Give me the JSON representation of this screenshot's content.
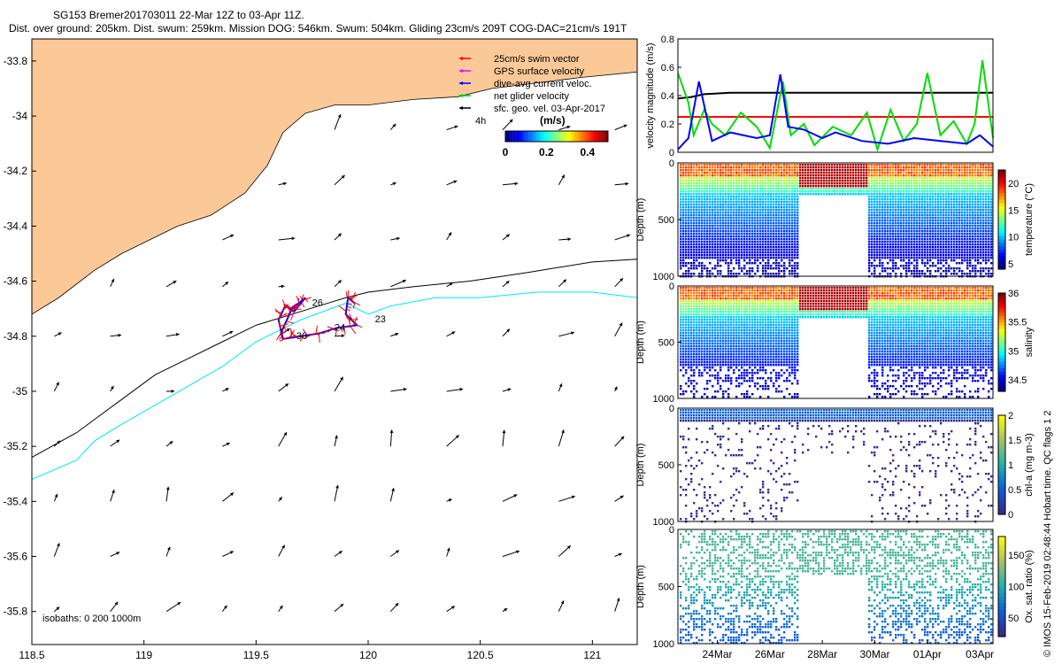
{
  "header": {
    "title": "SG153 Bremer201703011 22-Mar 12Z to 03-Apr 11Z.",
    "subtitle": "Dist. over ground: 205km. Dist. swum: 259km. Mission DOG: 546km. Swum: 504km. Gliding 23cm/s 209T COG-DAC=21cm/s 191T"
  },
  "credit": "© IMOS 15-Feb-2019 02:48:44 Hobart time. QC flags 1 2",
  "colors": {
    "land": "#fbc997",
    "isobath_200": "#000000",
    "isobath_1000": "#00e5ff",
    "swim_vector": "#ff0000",
    "gps_velocity": "#ff00ff",
    "dive_avg_current": "#0000ff",
    "net_glider": "#00cc00",
    "sfc_geo_vel": "#000000"
  },
  "chart_data": [
    {
      "type": "map",
      "name": "glider-track-map",
      "xlim": [
        118.5,
        121.2
      ],
      "ylim": [
        -35.92,
        -33.72
      ],
      "xticks": [
        118.5,
        119,
        119.5,
        120,
        120.5,
        121
      ],
      "yticks": [
        -33.8,
        -34,
        -34.2,
        -34.4,
        -34.6,
        -34.8,
        -35,
        -35.2,
        -35.4,
        -35.6,
        -35.8
      ],
      "legend": {
        "position": "top-right",
        "entries": [
          "25cm/s swim vector",
          "GPS surface velocity",
          "dive-avg current veloc.",
          "net glider velocity",
          "sfc. geo. vel. 03-Apr-2017"
        ]
      },
      "colorbar": {
        "label": "(m/s)",
        "range": [
          0,
          0.5
        ],
        "ticks": [
          0,
          0.2,
          0.4
        ]
      },
      "time_label": "4h",
      "isobath_note": "isobaths: 0   200   1000m",
      "track_labels": [
        {
          "text": "23",
          "lon": 120.03,
          "lat": -34.75
        },
        {
          "text": "26",
          "lon": 119.75,
          "lat": -34.69
        },
        {
          "text": "24",
          "lon": 119.85,
          "lat": -34.78
        },
        {
          "text": "30",
          "lon": 119.68,
          "lat": -34.81
        }
      ],
      "track": [
        [
          119.94,
          -34.68
        ],
        [
          119.91,
          -34.66
        ],
        [
          119.9,
          -34.72
        ],
        [
          119.95,
          -34.76
        ],
        [
          119.86,
          -34.77
        ],
        [
          119.78,
          -34.79
        ],
        [
          119.7,
          -34.8
        ],
        [
          119.62,
          -34.81
        ],
        [
          119.6,
          -34.74
        ],
        [
          119.63,
          -34.69
        ],
        [
          119.67,
          -34.71
        ],
        [
          119.72,
          -34.66
        ],
        [
          119.66,
          -34.7
        ],
        [
          119.61,
          -34.79
        ]
      ],
      "currents_grid": {
        "lon": [
          118.6,
          118.85,
          119.1,
          119.35,
          119.6,
          119.85,
          120.1,
          120.35,
          120.6,
          120.85,
          121.1
        ],
        "lat": [
          -34.05,
          -34.25,
          -34.45,
          -34.62,
          -34.8,
          -35.0,
          -35.2,
          -35.4,
          -35.6,
          -35.8
        ]
      },
      "isobath_200": [
        [
          118.5,
          -35.24
        ],
        [
          118.7,
          -35.15
        ],
        [
          118.9,
          -35.03
        ],
        [
          119.05,
          -34.94
        ],
        [
          119.2,
          -34.88
        ],
        [
          119.35,
          -34.82
        ],
        [
          119.5,
          -34.76
        ],
        [
          119.7,
          -34.71
        ],
        [
          119.9,
          -34.66
        ],
        [
          120.0,
          -34.64
        ],
        [
          120.2,
          -34.62
        ],
        [
          120.45,
          -34.6
        ],
        [
          120.7,
          -34.57
        ],
        [
          121.0,
          -34.53
        ],
        [
          121.2,
          -34.52
        ]
      ],
      "isobath_1000": [
        [
          118.5,
          -35.32
        ],
        [
          118.7,
          -35.25
        ],
        [
          118.78,
          -35.18
        ],
        [
          118.9,
          -35.12
        ],
        [
          119.05,
          -35.05
        ],
        [
          119.2,
          -34.98
        ],
        [
          119.35,
          -34.91
        ],
        [
          119.5,
          -34.82
        ],
        [
          119.7,
          -34.74
        ],
        [
          119.9,
          -34.68
        ],
        [
          120.0,
          -34.72
        ],
        [
          120.1,
          -34.69
        ],
        [
          120.3,
          -34.66
        ],
        [
          120.5,
          -34.66
        ],
        [
          120.75,
          -34.64
        ],
        [
          121.0,
          -34.64
        ],
        [
          121.2,
          -34.66
        ]
      ],
      "coastline": [
        [
          118.5,
          -34.72
        ],
        [
          118.62,
          -34.66
        ],
        [
          118.78,
          -34.56
        ],
        [
          118.9,
          -34.5
        ],
        [
          119.05,
          -34.44
        ],
        [
          119.15,
          -34.4
        ],
        [
          119.3,
          -34.36
        ],
        [
          119.45,
          -34.28
        ],
        [
          119.55,
          -34.18
        ],
        [
          119.62,
          -34.06
        ],
        [
          119.72,
          -33.99
        ],
        [
          119.85,
          -33.96
        ],
        [
          120.0,
          -33.96
        ],
        [
          120.2,
          -33.94
        ],
        [
          120.4,
          -33.93
        ],
        [
          120.55,
          -33.9
        ],
        [
          120.75,
          -33.88
        ],
        [
          120.95,
          -33.86
        ],
        [
          121.2,
          -33.84
        ]
      ]
    },
    {
      "type": "line",
      "name": "velocity-magnitude",
      "ylabel": "velocity magnitude (m/s)",
      "xlim": [
        0,
        12
      ],
      "ylim": [
        0,
        0.8
      ],
      "yticks": [
        0,
        0.2,
        0.4,
        0.6,
        0.8
      ],
      "series": [
        {
          "color": "#000000",
          "x": [
            0,
            0.5,
            1,
            2,
            4,
            6,
            8,
            10,
            12
          ],
          "values": [
            0.38,
            0.39,
            0.41,
            0.42,
            0.42,
            0.42,
            0.42,
            0.42,
            0.42
          ]
        },
        {
          "color": "#ff0000",
          "x": [
            0,
            12
          ],
          "values": [
            0.25,
            0.25
          ]
        },
        {
          "color": "#00dd00",
          "x": [
            0,
            0.4,
            0.6,
            1.0,
            1.3,
            1.8,
            2.4,
            3.0,
            3.5,
            4.0,
            4.3,
            4.8,
            5.2,
            5.9,
            6.6,
            7.2,
            7.6,
            8.1,
            8.6,
            9.1,
            9.5,
            10.0,
            10.5,
            11.0,
            11.3,
            11.6,
            12.0
          ],
          "values": [
            0.56,
            0.35,
            0.12,
            0.3,
            0.2,
            0.12,
            0.28,
            0.18,
            0.03,
            0.5,
            0.12,
            0.2,
            0.05,
            0.18,
            0.12,
            0.28,
            0.02,
            0.3,
            0.08,
            0.2,
            0.56,
            0.12,
            0.22,
            0.06,
            0.2,
            0.65,
            0.1
          ]
        },
        {
          "color": "#0000ff",
          "x": [
            0,
            0.4,
            0.8,
            1.3,
            2.0,
            3.0,
            3.5,
            3.9,
            4.2,
            4.8,
            5.5,
            6.0,
            7.0,
            8.0,
            9.0,
            10.0,
            11.0,
            11.5,
            12.0
          ],
          "values": [
            0.02,
            0.1,
            0.5,
            0.08,
            0.14,
            0.1,
            0.12,
            0.55,
            0.18,
            0.16,
            0.1,
            0.14,
            0.08,
            0.06,
            0.1,
            0.08,
            0.06,
            0.12,
            0.04
          ]
        }
      ]
    },
    {
      "type": "heatmap",
      "name": "temperature-section",
      "ylabel": "Depth (m)",
      "colorbar_label": "temperature (°C)",
      "ylim": [
        1000,
        0
      ],
      "yticks": [
        0,
        500,
        1000
      ],
      "colorbar_range": [
        4,
        22.5
      ],
      "colorbar_ticks": [
        5,
        10,
        15,
        20
      ]
    },
    {
      "type": "heatmap",
      "name": "salinity-section",
      "ylabel": "Depth (m)",
      "colorbar_label": "salinity",
      "ylim": [
        1000,
        0
      ],
      "yticks": [
        0,
        500,
        1000
      ],
      "colorbar_range": [
        34.3,
        36
      ],
      "colorbar_ticks": [
        34.5,
        35,
        35.5,
        36
      ]
    },
    {
      "type": "scatter",
      "name": "chlorophyll-section",
      "ylabel": "Depth (m)",
      "colorbar_label": "chl-a (mg m-3)",
      "ylim": [
        1000,
        0
      ],
      "yticks": [
        0,
        500,
        1000
      ],
      "colorbar_range": [
        0,
        2
      ],
      "colorbar_ticks": [
        0,
        0.5,
        1,
        1.5,
        2
      ]
    },
    {
      "type": "scatter",
      "name": "oxygen-saturation-section",
      "ylabel": "Depth (m)",
      "colorbar_label": "Ox. sat. ratio (%)",
      "ylim": [
        1000,
        0
      ],
      "yticks": [
        0,
        500,
        1000
      ],
      "colorbar_range": [
        20,
        180
      ],
      "colorbar_ticks": [
        50,
        100,
        150
      ],
      "xlabels": [
        "24Mar",
        "26Mar",
        "28Mar",
        "30Mar",
        "01Apr",
        "03Apr"
      ],
      "xtick_days": [
        1.5,
        3.5,
        5.5,
        7.5,
        9.5,
        11.5
      ],
      "xlim": [
        0,
        12
      ]
    }
  ]
}
